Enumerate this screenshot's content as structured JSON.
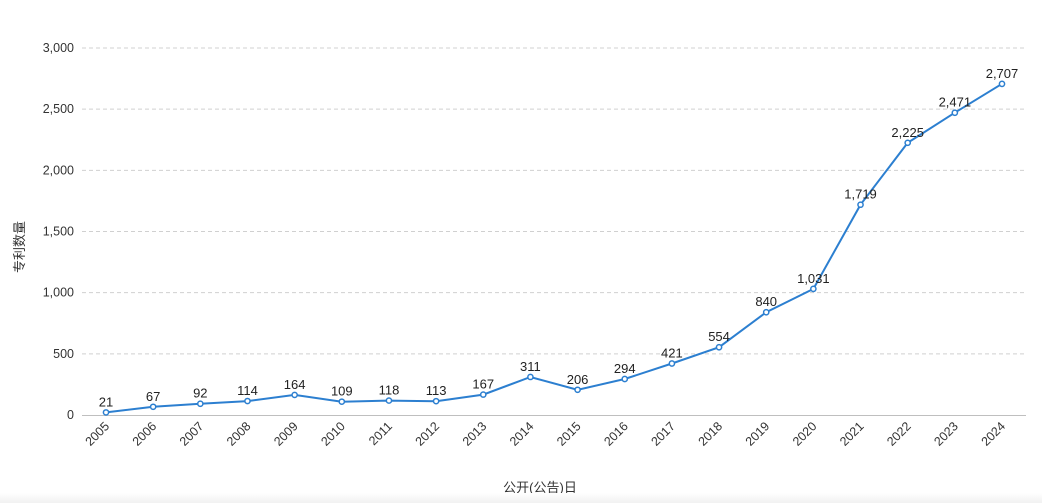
{
  "chart_data": {
    "type": "line",
    "xlabel": "公开(公告)日",
    "ylabel": "专利数量",
    "ylim": [
      0,
      3000
    ],
    "y_ticks": [
      0,
      500,
      1000,
      1500,
      2000,
      2500,
      3000
    ],
    "grid": "horizontal-dashed",
    "categories": [
      "2005",
      "2006",
      "2007",
      "2008",
      "2009",
      "2010",
      "2011",
      "2012",
      "2013",
      "2014",
      "2015",
      "2016",
      "2017",
      "2018",
      "2019",
      "2020",
      "2021",
      "2022",
      "2023",
      "2024"
    ],
    "series": [
      {
        "values": [
          21,
          67,
          92,
          114,
          164,
          109,
          118,
          113,
          167,
          311,
          206,
          294,
          421,
          554,
          840,
          1031,
          1719,
          2225,
          2471,
          2707
        ],
        "color": "#2c7fd0"
      }
    ]
  }
}
